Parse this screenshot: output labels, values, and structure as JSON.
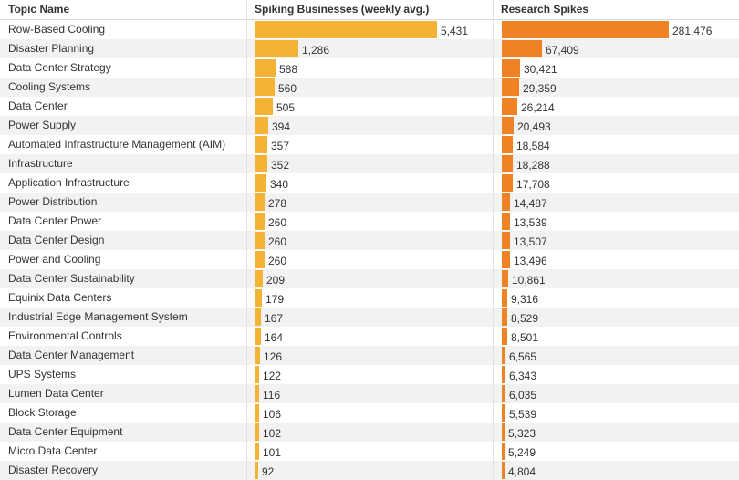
{
  "colors": {
    "biz_bar": "#f5b335",
    "res_bar": "#ef8222",
    "stripe": "#f2f2f2"
  },
  "chart_data": {
    "type": "bar",
    "orientation": "horizontal",
    "columns": [
      "Topic Name",
      "Spiking Businesses (weekly avg.)",
      "Research Spikes"
    ],
    "categories": [
      "Row-Based Cooling",
      "Disaster Planning",
      "Data Center Strategy",
      "Cooling Systems",
      "Data Center",
      "Power Supply",
      "Automated Infrastructure Management (AIM)",
      "Infrastructure",
      "Application Infrastructure",
      "Power Distribution",
      "Data Center Power",
      "Data Center Design",
      "Power and Cooling",
      "Data Center Sustainability",
      "Equinix Data Centers",
      "Industrial Edge Management System",
      "Environmental Controls",
      "Data Center Management",
      "UPS Systems",
      "Lumen Data Center",
      "Block Storage",
      "Data Center Equipment",
      "Micro Data Center",
      "Disaster Recovery"
    ],
    "series": [
      {
        "name": "Spiking Businesses (weekly avg.)",
        "values": [
          5431,
          1286,
          588,
          560,
          505,
          394,
          357,
          352,
          340,
          278,
          260,
          260,
          260,
          209,
          179,
          167,
          164,
          126,
          122,
          116,
          106,
          102,
          101,
          92
        ],
        "labels": [
          "5,431",
          "1,286",
          "588",
          "560",
          "505",
          "394",
          "357",
          "352",
          "340",
          "278",
          "260",
          "260",
          "260",
          "209",
          "179",
          "167",
          "164",
          "126",
          "122",
          "116",
          "106",
          "102",
          "101",
          "92"
        ],
        "xlim": [
          0,
          5431
        ]
      },
      {
        "name": "Research Spikes",
        "values": [
          281476,
          67409,
          30421,
          29359,
          26214,
          20493,
          18584,
          18288,
          17708,
          14487,
          13539,
          13507,
          13496,
          10861,
          9316,
          8529,
          8501,
          6565,
          6343,
          6035,
          5539,
          5323,
          5249,
          4804
        ],
        "labels": [
          "281,476",
          "67,409",
          "30,421",
          "29,359",
          "26,214",
          "20,493",
          "18,584",
          "18,288",
          "17,708",
          "14,487",
          "13,539",
          "13,507",
          "13,496",
          "10,861",
          "9,316",
          "8,529",
          "8,501",
          "6,565",
          "6,343",
          "6,035",
          "5,539",
          "5,323",
          "5,249",
          "4,804"
        ],
        "xlim": [
          0,
          281476
        ]
      }
    ]
  }
}
